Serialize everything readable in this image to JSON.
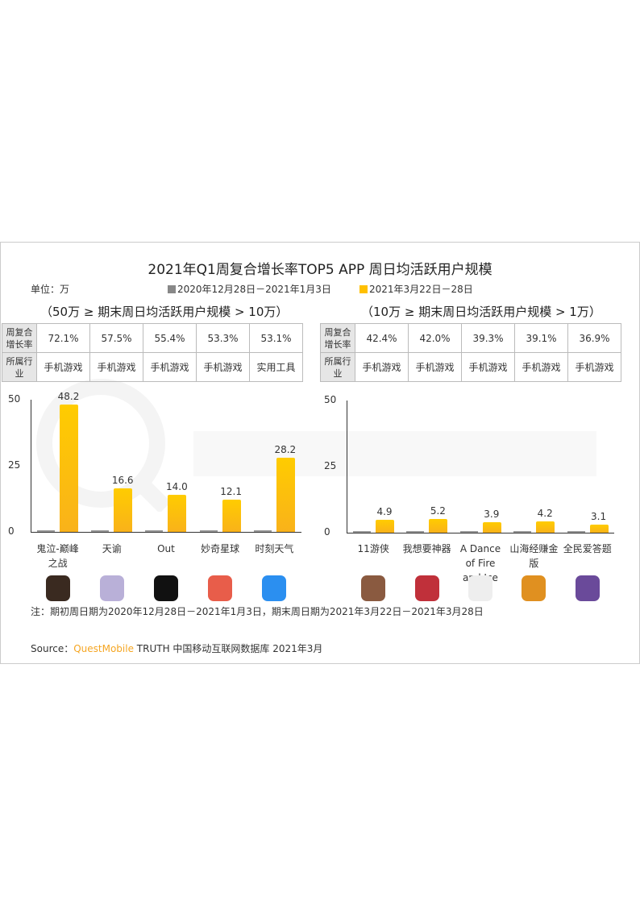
{
  "title": "2021年Q1周复合增长率TOP5 APP 周日均活跃用户规模",
  "unit": "单位：万",
  "legend": [
    {
      "label": "2020年12月28日－2021年1月3日",
      "color": "#888888"
    },
    {
      "label": "2021年3月22日－28日",
      "color": "#ffc000"
    }
  ],
  "tables": [
    {
      "subtitle": "（50万 ≥ 期末周日均活跃用户规模 > 10万）",
      "row_headers": [
        "周复合增长率",
        "所属行业"
      ],
      "growth": [
        "72.1%",
        "57.5%",
        "55.4%",
        "53.3%",
        "53.1%"
      ],
      "industry": [
        "手机游戏",
        "手机游戏",
        "手机游戏",
        "手机游戏",
        "实用工具"
      ]
    },
    {
      "subtitle": "（10万 ≥ 期末周日均活跃用户规模 > 1万）",
      "row_headers": [
        "周复合增长率",
        "所属行业"
      ],
      "growth": [
        "42.4%",
        "42.0%",
        "39.3%",
        "39.1%",
        "36.9%"
      ],
      "industry": [
        "手机游戏",
        "手机游戏",
        "手机游戏",
        "手机游戏",
        "手机游戏"
      ]
    }
  ],
  "chart_data": [
    {
      "type": "bar",
      "categories": [
        "鬼泣-巅峰之战",
        "天谕",
        "Out",
        "妙奇星球",
        "时刻天气"
      ],
      "series": [
        {
          "name": "2020年12月28日－2021年1月3日",
          "values": [
            0.6,
            0.6,
            0.6,
            0.6,
            0.6
          ]
        },
        {
          "name": "2021年3月22日－28日",
          "values": [
            48.2,
            16.6,
            14.0,
            12.1,
            28.2
          ]
        }
      ],
      "ylim": [
        0,
        50
      ],
      "yticks": [
        "0",
        "25",
        "50"
      ],
      "data_labels": [
        "48.2",
        "16.6",
        "14.0",
        "12.1",
        "28.2"
      ],
      "icons": [
        "devil-may-cry-app-icon",
        "tianyu-app-icon",
        "out-app-icon",
        "miaoqi-planet-app-icon",
        "weather-app-icon"
      ]
    },
    {
      "type": "bar",
      "categories": [
        "11游侠",
        "我想要神器",
        "A Dance of Fire and Ice",
        "山海经赚金版",
        "全民爱答题"
      ],
      "series": [
        {
          "name": "2020年12月28日－2021年1月3日",
          "values": [
            0.6,
            0.6,
            0.6,
            0.6,
            0.6
          ]
        },
        {
          "name": "2021年3月22日－28日",
          "values": [
            4.9,
            5.2,
            3.9,
            4.2,
            3.1
          ]
        }
      ],
      "ylim": [
        0,
        50
      ],
      "yticks": [
        "0",
        "25",
        "50"
      ],
      "data_labels": [
        "4.9",
        "5.2",
        "3.9",
        "4.2",
        "3.1"
      ],
      "icons": [
        "11youxia-app-icon",
        "shenqi-app-icon",
        "dance-fire-ice-app-icon",
        "shanhaijing-app-icon",
        "quiz-app-icon"
      ]
    }
  ],
  "watermark": "QUEST MOBILE",
  "note": "注：期初周日期为2020年12月28日－2021年1月3日，期末周日期为2021年3月22日－2021年3月28日",
  "source": {
    "prefix": "Source：",
    "brand": "QuestMobile",
    "rest": " TRUTH 中国移动互联网数据库 2021年3月",
    "brand_color": "#f5a623"
  }
}
